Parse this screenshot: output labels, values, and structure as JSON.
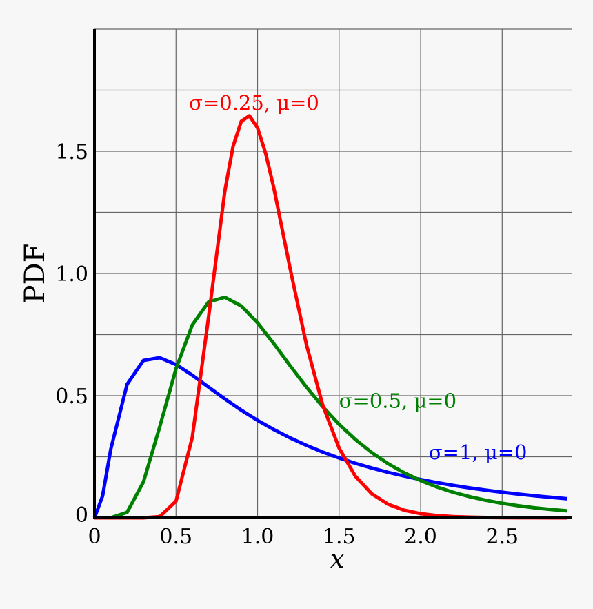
{
  "chart_data": {
    "type": "line",
    "xlabel": "x",
    "ylabel": "PDF",
    "xlim": [
      0,
      2.93
    ],
    "ylim": [
      0,
      2.0
    ],
    "grid": true,
    "x_ticks": [
      0,
      0.5,
      1.0,
      1.5,
      2.0,
      2.5
    ],
    "x_tick_labels": [
      "0",
      "0.5",
      "1.0",
      "1.5",
      "2.0",
      "2.5"
    ],
    "y_ticks": [
      0,
      0.5,
      1.0,
      1.5
    ],
    "y_tick_labels": [
      "0",
      "0.5",
      "1.0",
      "1.5"
    ],
    "y_grid_step": 0.25,
    "series": [
      {
        "name": "σ=1, μ=0",
        "color": "#0000ff",
        "label_at": [
          2.05,
          0.24
        ],
        "x": [
          0,
          0.05,
          0.1,
          0.2,
          0.3,
          0.4,
          0.5,
          0.6,
          0.7,
          0.8,
          0.9,
          1.0,
          1.1,
          1.2,
          1.3,
          1.4,
          1.5,
          1.6,
          1.7,
          1.8,
          1.9,
          2.0,
          2.1,
          2.2,
          2.3,
          2.4,
          2.5,
          2.6,
          2.7,
          2.8,
          2.9
        ],
        "y": [
          0,
          0.0898,
          0.2816,
          0.5462,
          0.6442,
          0.6555,
          0.6275,
          0.5836,
          0.5348,
          0.4864,
          0.4408,
          0.3989,
          0.361,
          0.327,
          0.2965,
          0.2693,
          0.245,
          0.2233,
          0.2039,
          0.1865,
          0.1709,
          0.1569,
          0.1443,
          0.1329,
          0.1226,
          0.1133,
          0.1049,
          0.0972,
          0.0902,
          0.0839,
          0.078
        ]
      },
      {
        "name": "σ=0.5, μ=0",
        "color": "#008000",
        "label_at": [
          1.5,
          0.45
        ],
        "x": [
          0,
          0.1,
          0.2,
          0.3,
          0.4,
          0.5,
          0.6,
          0.7,
          0.8,
          0.9,
          1.0,
          1.1,
          1.2,
          1.3,
          1.4,
          1.5,
          1.6,
          1.7,
          1.8,
          1.9,
          2.0,
          2.1,
          2.2,
          2.3,
          2.4,
          2.5,
          2.6,
          2.7,
          2.8,
          2.9
        ],
        "y": [
          0,
          0.0002,
          0.0225,
          0.1465,
          0.372,
          0.6104,
          0.7892,
          0.8838,
          0.9028,
          0.8671,
          0.7979,
          0.7123,
          0.6222,
          0.5348,
          0.4544,
          0.3828,
          0.3206,
          0.2673,
          0.2221,
          0.1842,
          0.1526,
          0.1264,
          0.1046,
          0.0866,
          0.0718,
          0.0595,
          0.0494,
          0.0411,
          0.0342,
          0.0285
        ]
      },
      {
        "name": "σ=0.25, μ=0",
        "color": "#ff0000",
        "label_at": [
          0.58,
          1.67
        ],
        "x": [
          0,
          0.1,
          0.2,
          0.3,
          0.4,
          0.5,
          0.6,
          0.7,
          0.8,
          0.85,
          0.9,
          0.95,
          1.0,
          1.05,
          1.1,
          1.2,
          1.3,
          1.4,
          1.5,
          1.6,
          1.7,
          1.8,
          1.9,
          2.0,
          2.1,
          2.2,
          2.3,
          2.4,
          2.5,
          2.6,
          2.7,
          2.8,
          2.9
        ],
        "y": [
          0,
          0,
          0,
          5e-05,
          0.0048,
          0.0683,
          0.3298,
          0.8241,
          1.3393,
          1.5197,
          1.6224,
          1.6449,
          1.5958,
          1.4911,
          1.349,
          1.0194,
          0.7077,
          0.4607,
          0.2855,
          0.1704,
          0.0987,
          0.0559,
          0.0311,
          0.0171,
          0.0093,
          0.005,
          0.0027,
          0.0014,
          0.0008,
          0.0004,
          0.0002,
          0.0001,
          0.0001
        ]
      }
    ]
  }
}
